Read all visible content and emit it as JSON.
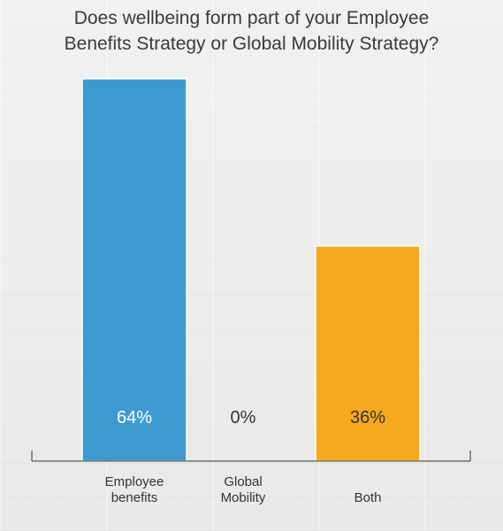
{
  "chart_data": {
    "type": "bar",
    "title_lines": [
      "Does wellbeing form part of your Employee",
      "Benefits Strategy or Global Mobility Strategy?"
    ],
    "categories": [
      [
        "Employee",
        "benefits"
      ],
      [
        "Global",
        "Mobility"
      ],
      [
        "Both"
      ]
    ],
    "values": [
      64,
      0,
      36
    ],
    "value_labels": [
      "64%",
      "0%",
      "36%"
    ],
    "value_label_colors": [
      "#ffffff",
      "#333333",
      "#333333"
    ],
    "colors": [
      "#3d9ad1",
      "#3d9ad1",
      "#f6a81f"
    ],
    "ylim": [
      0,
      64
    ],
    "grid": false,
    "legend": "none"
  }
}
